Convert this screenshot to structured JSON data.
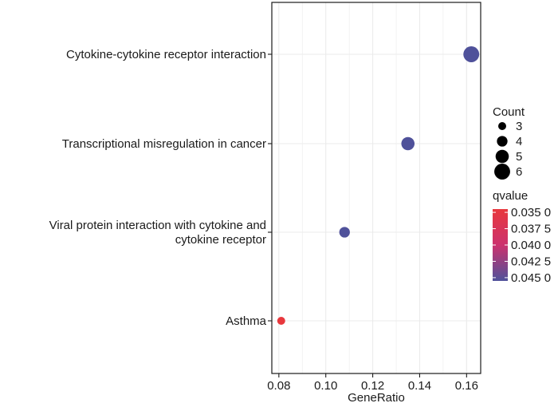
{
  "chart_data": {
    "type": "scatter",
    "title": "",
    "xlabel": "GeneRatio",
    "ylabel": "",
    "xlim": [
      0.077,
      0.166
    ],
    "xticks": [
      "0.08",
      "0.10",
      "0.12",
      "0.14",
      "0.16"
    ],
    "xtick_values": [
      0.08,
      0.1,
      0.12,
      0.14,
      0.16
    ],
    "grid": true,
    "categories": [
      [
        "Cytokine-cytokine receptor interaction"
      ],
      [
        "Transcriptional misregulation in cancer"
      ],
      [
        "Viral protein interaction with cytokine and",
        "cytokine receptor"
      ],
      [
        "Asthma"
      ]
    ],
    "points": [
      {
        "category_index": 0,
        "gene_ratio": 0.162,
        "count": 6,
        "qvalue": 0.0455
      },
      {
        "category_index": 1,
        "gene_ratio": 0.135,
        "count": 5,
        "qvalue": 0.0455
      },
      {
        "category_index": 2,
        "gene_ratio": 0.108,
        "count": 4,
        "qvalue": 0.0455
      },
      {
        "category_index": 3,
        "gene_ratio": 0.081,
        "count": 3,
        "qvalue": 0.0345
      }
    ],
    "size_legend": {
      "title": "Count",
      "labels": [
        "3",
        "4",
        "5",
        "6"
      ],
      "values": [
        3,
        4,
        5,
        6
      ]
    },
    "color_legend": {
      "title": "qvalue",
      "labels": [
        "0.035 0",
        "0.037 5",
        "0.040 0",
        "0.042 5",
        "0.045 0"
      ],
      "values": [
        0.035,
        0.0375,
        0.04,
        0.0425,
        0.045
      ],
      "range": [
        0.0345,
        0.0455
      ],
      "low_color": "#e8383d",
      "high_color": "#4f519a"
    },
    "colors": {
      "grid": "#ebebeb",
      "axis": "#1a1a1a"
    }
  }
}
